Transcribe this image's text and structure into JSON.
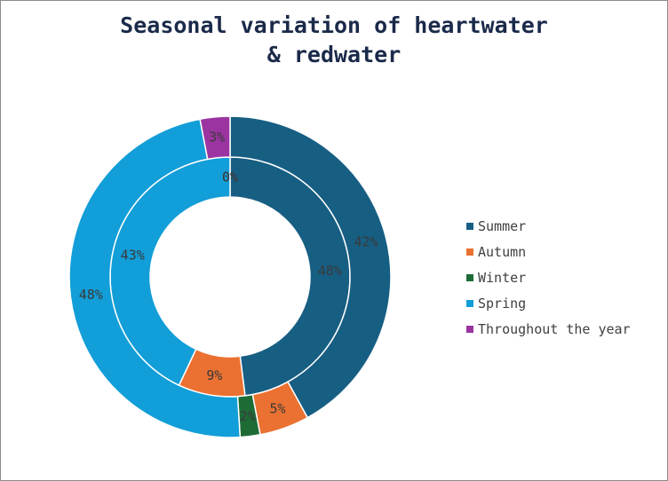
{
  "chart_data": {
    "type": "donut",
    "title": [
      "Seasonal variation of heartwater",
      "& redwater"
    ],
    "categories": [
      "Summer",
      "Autumn",
      "Winter",
      "Spring",
      "Throughout the year"
    ],
    "colors": [
      "#175e83",
      "#ea7131",
      "#1d6b35",
      "#129ed8",
      "#9b34a0"
    ],
    "series": [
      {
        "values": [
          48,
          9,
          0,
          43,
          0
        ],
        "labels": [
          "48%",
          "9%",
          "",
          "43%",
          "0%"
        ],
        "zero_label": "0%"
      },
      {
        "values": [
          42,
          5,
          2,
          48,
          3
        ],
        "labels": [
          "42%",
          "5%",
          "2%",
          "48%",
          "3%"
        ]
      }
    ],
    "legend_position": "right"
  }
}
